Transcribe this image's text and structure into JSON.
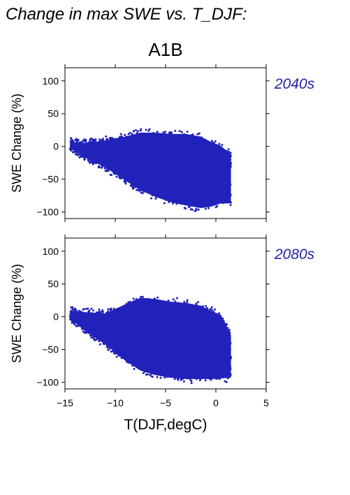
{
  "figure": {
    "title": "Change in max SWE vs. T_DJF:",
    "scenario": "A1B",
    "point_color": "#2222bb",
    "label_color": "#2222aa"
  },
  "chart_data": [
    {
      "type": "scatter",
      "panel_label": "2040s",
      "ylabel": "SWE Change (%)",
      "xlabel": "",
      "xlim": [
        -15,
        5
      ],
      "ylim": [
        -110,
        120
      ],
      "xticks": [
        -15,
        -10,
        -5,
        0,
        5
      ],
      "yticks": [
        -100,
        -50,
        0,
        50,
        100
      ],
      "ytick_labels": [
        "−100",
        "−50",
        "0",
        "50",
        "100"
      ],
      "show_x_tick_labels": false,
      "grid": false,
      "envelope": {
        "x": [
          -14.5,
          -13,
          -11,
          -9,
          -7.5,
          -6,
          -4.5,
          -3,
          -1.5,
          -0.5,
          0.5,
          1.5
        ],
        "y_upper": [
          10,
          8,
          12,
          18,
          24,
          24,
          22,
          22,
          18,
          10,
          4,
          -10
        ],
        "y_lower": [
          -4,
          -20,
          -35,
          -55,
          -70,
          -80,
          -88,
          -93,
          -97,
          -95,
          -90,
          -90
        ]
      },
      "density_center": [
        -5,
        -35
      ]
    },
    {
      "type": "scatter",
      "panel_label": "2080s",
      "ylabel": "SWE Change (%)",
      "xlabel": "T(DJF,degC)",
      "xlim": [
        -15,
        5
      ],
      "ylim": [
        -110,
        120
      ],
      "xticks": [
        -15,
        -10,
        -5,
        0,
        5
      ],
      "xtick_labels": [
        "−15",
        "−10",
        "−5",
        "0",
        "5"
      ],
      "yticks": [
        -100,
        -50,
        0,
        50,
        100
      ],
      "ytick_labels": [
        "−100",
        "−50",
        "0",
        "50",
        "100"
      ],
      "show_x_tick_labels": true,
      "grid": false,
      "envelope": {
        "x": [
          -14.5,
          -13,
          -11,
          -9,
          -7.5,
          -6,
          -4.5,
          -3,
          -1.5,
          -0.5,
          0.5,
          1.5
        ],
        "y_upper": [
          12,
          10,
          8,
          22,
          32,
          30,
          26,
          24,
          20,
          12,
          6,
          -25
        ],
        "y_lower": [
          -5,
          -25,
          -45,
          -70,
          -85,
          -92,
          -96,
          -98,
          -98,
          -98,
          -97,
          -96
        ]
      },
      "density_center": [
        -5,
        -40
      ]
    }
  ]
}
